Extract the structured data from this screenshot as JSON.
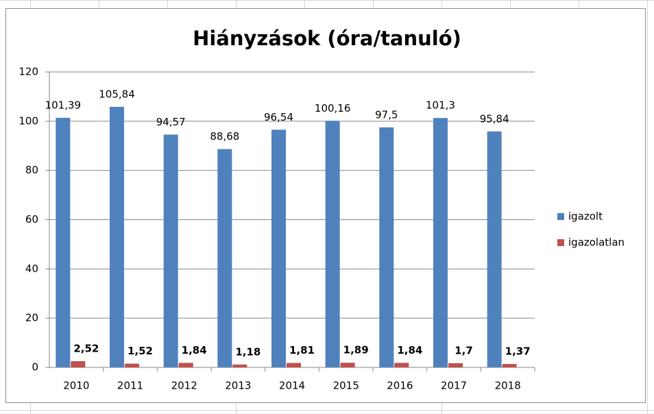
{
  "chart_data": {
    "type": "bar",
    "title": "Hiányzások (óra/tanuló)",
    "categories": [
      "2010",
      "2011",
      "2012",
      "2013",
      "2014",
      "2015",
      "2016",
      "2017",
      "2018"
    ],
    "series": [
      {
        "name": "igazolt",
        "color": "#4f81bd",
        "values": [
          101.39,
          105.84,
          94.57,
          88.68,
          96.54,
          100.16,
          97.5,
          101.3,
          95.84
        ],
        "value_labels": [
          "101,39",
          "105,84",
          "94,57",
          "88,68",
          "96,54",
          "100,16",
          "97,5",
          "101,3",
          "95,84"
        ]
      },
      {
        "name": "igazolatlan",
        "color": "#c0504d",
        "values": [
          2.52,
          1.52,
          1.84,
          1.18,
          1.81,
          1.89,
          1.84,
          1.7,
          1.37
        ],
        "value_labels": [
          "2,52",
          "1,52",
          "1,84",
          "1,18",
          "1,81",
          "1,89",
          "1,84",
          "1,7",
          "1,37"
        ]
      }
    ],
    "ylim": [
      0,
      120
    ],
    "yticks": [
      0,
      20,
      40,
      60,
      80,
      100,
      120
    ],
    "grid": true,
    "legend": "right"
  }
}
